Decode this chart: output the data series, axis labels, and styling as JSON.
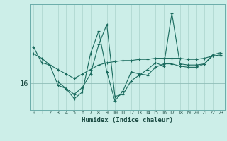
{
  "xlabel": "Humidex (Indice chaleur)",
  "bg_color": "#cceee8",
  "line_color": "#1a6b5e",
  "grid_color": "#aad4cc",
  "label_color": "#1a4a42",
  "x_values": [
    0,
    1,
    2,
    3,
    4,
    5,
    6,
    7,
    8,
    9,
    10,
    11,
    12,
    13,
    14,
    15,
    16,
    17,
    18,
    19,
    20,
    21,
    22,
    23
  ],
  "series1": [
    17.3,
    17.1,
    16.8,
    16.6,
    16.4,
    16.2,
    16.4,
    16.6,
    16.8,
    16.9,
    16.95,
    17.0,
    17.0,
    17.05,
    17.05,
    17.1,
    17.1,
    17.1,
    17.1,
    17.05,
    17.05,
    17.1,
    17.2,
    17.25
  ],
  "series2": [
    17.6,
    16.9,
    16.8,
    15.9,
    15.75,
    15.5,
    15.8,
    16.4,
    17.7,
    18.6,
    15.4,
    15.5,
    16.1,
    16.35,
    16.6,
    16.9,
    16.75,
    19.1,
    16.85,
    16.8,
    16.8,
    16.85,
    17.25,
    17.35
  ],
  "series3": [
    null,
    null,
    null,
    16.05,
    15.75,
    15.3,
    15.6,
    17.3,
    18.3,
    16.5,
    15.2,
    15.65,
    16.5,
    16.4,
    16.35,
    16.7,
    16.85,
    16.85,
    16.75,
    16.7,
    16.7,
    16.85,
    17.2,
    17.2
  ],
  "ytick_labels": [
    "16"
  ],
  "ytick_positions": [
    16
  ],
  "ylim": [
    14.8,
    19.5
  ],
  "xlim": [
    -0.5,
    23.5
  ]
}
